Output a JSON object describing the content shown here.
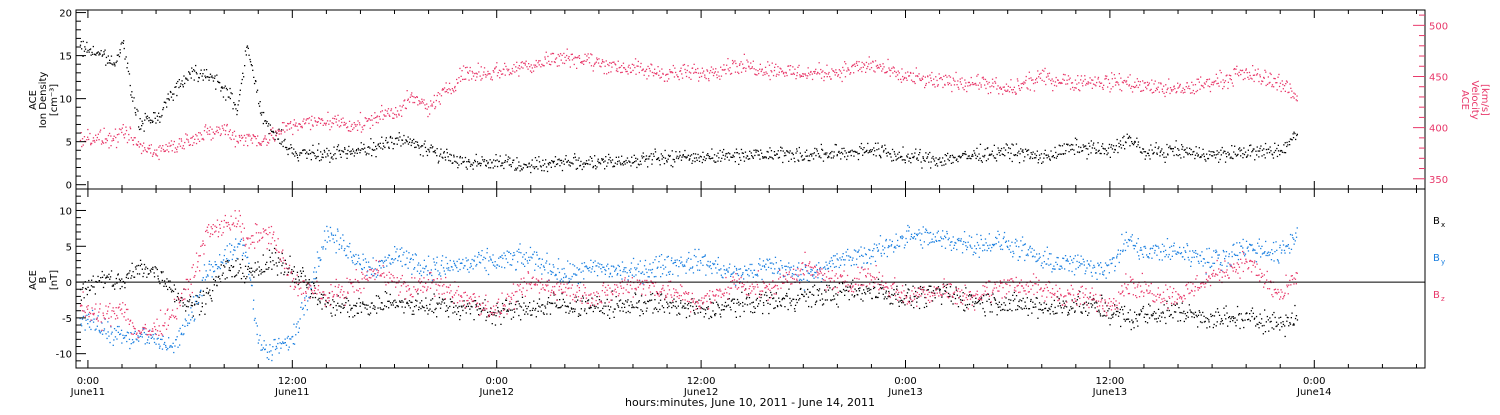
{
  "figure": {
    "xlabel": "hours:minutes, June 10, 2011 - June 14, 2011",
    "xticks": [
      {
        "x": 0,
        "time": "0:00",
        "date": "June11"
      },
      {
        "x": 12,
        "time": "12:00",
        "date": "June11"
      },
      {
        "x": 24,
        "time": "0:00",
        "date": "June12"
      },
      {
        "x": 36,
        "time": "12:00",
        "date": "June12"
      },
      {
        "x": 48,
        "time": "0:00",
        "date": "June13"
      },
      {
        "x": 60,
        "time": "12:00",
        "date": "June13"
      },
      {
        "x": 72,
        "time": "0:00",
        "date": "June14"
      }
    ],
    "xlim": [
      -0.7,
      78.5
    ]
  },
  "colors": {
    "black": "#000000",
    "pink": "#e8386a",
    "blue": "#1a7fe0"
  },
  "chart_data": [
    {
      "type": "scatter",
      "panel": "top",
      "ylabel_left": [
        "ACE",
        "Ion Density",
        "[cm⁻³]"
      ],
      "ylabel_right": [
        "ACE",
        "Velocity",
        "[km/s]"
      ],
      "ylim_left": [
        -0.5,
        20.3
      ],
      "yticks_left": [
        0,
        5,
        10,
        15,
        20
      ],
      "ylim_right": [
        340,
        515
      ],
      "yticks_right": [
        350,
        400,
        450,
        500
      ],
      "x_hours": [
        -0.5,
        0.5,
        1.5,
        2.0,
        2.5,
        3.0,
        4.0,
        5.0,
        6.0,
        7.0,
        8.0,
        8.8,
        9.3,
        10.0,
        10.5,
        11.0,
        12.0,
        14.0,
        16.0,
        17.0,
        18.0,
        19.0,
        20.0,
        22.0,
        24.0,
        26.0,
        28.0,
        30.0,
        32.0,
        34.0,
        36.0,
        38.0,
        40.0,
        42.0,
        44.0,
        46.0,
        48.0,
        50.0,
        52.0,
        54.0,
        56.0,
        58.0,
        60.0,
        61.0,
        62.0,
        64.0,
        66.0,
        68.0,
        70.0,
        71.0
      ],
      "series": [
        {
          "color": "black",
          "axis": "left",
          "y": [
            16,
            15.5,
            14,
            17,
            11,
            7,
            8,
            11,
            13,
            13,
            11,
            9,
            16,
            10,
            6.5,
            6,
            3.8,
            3.5,
            4,
            4.5,
            5.5,
            5,
            4,
            2.8,
            2.6,
            2.3,
            2.8,
            2.5,
            3,
            3.2,
            3.3,
            3.5,
            3.8,
            3.5,
            3.7,
            4.2,
            3.2,
            3,
            3.5,
            4,
            3.2,
            4.5,
            4,
            5.5,
            3.8,
            4,
            3.5,
            3.8,
            4,
            6
          ]
        },
        {
          "color": "pink",
          "axis": "left",
          "y": [
            5.5,
            5.5,
            5.2,
            6,
            5.5,
            4.5,
            4,
            4.5,
            5.5,
            6,
            6.5,
            5.5,
            5.5,
            5.3,
            5.5,
            6,
            7,
            7.5,
            7,
            8,
            8.5,
            10,
            9,
            13,
            13.2,
            14,
            15,
            14.2,
            13.5,
            13,
            13,
            14,
            13.5,
            13,
            13.2,
            14,
            12.5,
            12,
            12,
            11,
            12.5,
            12,
            12,
            12,
            11.5,
            11,
            12,
            13,
            12,
            10
          ]
        }
      ]
    },
    {
      "type": "scatter",
      "panel": "bottom",
      "ylabel_left": [
        "ACE",
        "B",
        "[nT]"
      ],
      "ylim": [
        -12,
        13
      ],
      "yticks": [
        -10,
        -5,
        0,
        5,
        10
      ],
      "zero_line": true,
      "legend": [
        {
          "label": "B",
          "sub": "x",
          "color": "black"
        },
        {
          "label": "B",
          "sub": "y",
          "color": "blue"
        },
        {
          "label": "B",
          "sub": "z",
          "color": "pink"
        }
      ],
      "legend_position": "right",
      "x_hours": [
        -0.5,
        0.5,
        1.5,
        2.0,
        2.5,
        3.0,
        4.0,
        5.0,
        6.0,
        7.0,
        8.0,
        8.8,
        9.3,
        10.0,
        10.5,
        11.0,
        12.0,
        14.0,
        16.0,
        17.0,
        18.0,
        19.0,
        20.0,
        22.0,
        24.0,
        26.0,
        28.0,
        30.0,
        32.0,
        34.0,
        36.0,
        38.0,
        40.0,
        42.0,
        44.0,
        46.0,
        48.0,
        50.0,
        52.0,
        54.0,
        56.0,
        58.0,
        60.0,
        61.0,
        62.0,
        64.0,
        66.0,
        68.0,
        70.0,
        71.0
      ],
      "series": [
        {
          "name": "Bx",
          "color": "black",
          "y": [
            -1,
            0,
            0.5,
            0,
            1,
            2,
            1.5,
            -1,
            -3,
            -2,
            2,
            1.5,
            2,
            1.5,
            2.5,
            3,
            2,
            -3,
            -3.5,
            -3,
            -2.5,
            -3.5,
            -3,
            -3.5,
            -4,
            -3.5,
            -3,
            -3.5,
            -3,
            -3,
            -4,
            -3,
            -2.5,
            -2,
            -1.5,
            -1,
            -2,
            -1.5,
            -2.5,
            -3,
            -3.5,
            -3,
            -4,
            -5,
            -4.5,
            -4,
            -5,
            -5,
            -5.5,
            -5
          ]
        },
        {
          "name": "By",
          "color": "blue",
          "y": [
            -5,
            -6,
            -7,
            -7,
            -7.5,
            -7.5,
            -8,
            -9,
            -5,
            2,
            3,
            5,
            4,
            -8,
            -10,
            -9,
            -8,
            7,
            3,
            2,
            4,
            3,
            2,
            2.5,
            3,
            3.5,
            1,
            2,
            1.5,
            2.5,
            3,
            1,
            2.5,
            1,
            3,
            4,
            6.5,
            6,
            5.5,
            5.5,
            3,
            2.5,
            2,
            6,
            4,
            4.5,
            3,
            5,
            4,
            7
          ]
        },
        {
          "name": "Bz",
          "color": "pink",
          "y": [
            -3,
            -5,
            -4,
            -3,
            -6,
            -7,
            -6.5,
            -4,
            0,
            7,
            8,
            9,
            5,
            7,
            7,
            5.5,
            0,
            -2,
            0,
            2,
            0,
            -1,
            0,
            -2,
            -4,
            0,
            -1,
            -2,
            0,
            -1,
            -3,
            0,
            -1,
            2,
            0,
            1,
            -2,
            -1,
            -2,
            0,
            -1,
            -2,
            -3,
            0,
            -1,
            -2,
            1,
            3,
            -2,
            1
          ]
        }
      ]
    }
  ]
}
